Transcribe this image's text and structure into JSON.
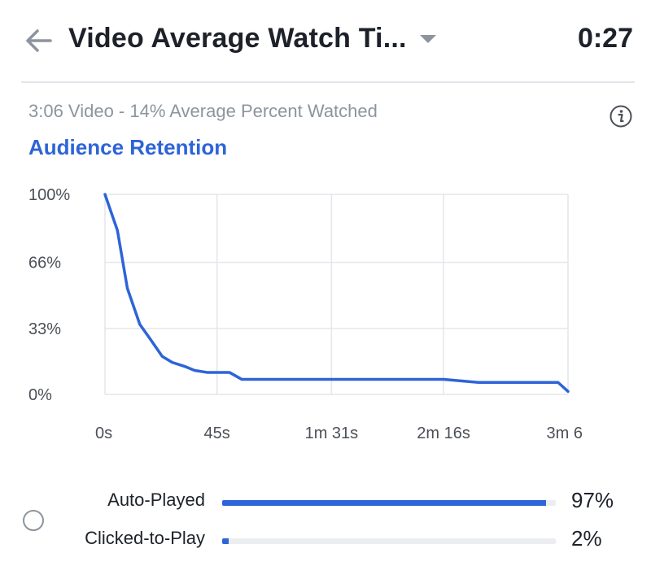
{
  "header": {
    "back_icon": "arrow-left-icon",
    "title": "Video Average Watch Ti...",
    "dropdown_icon": "caret-down-icon",
    "value": "0:27"
  },
  "summary": {
    "subtitle": "3:06 Video - 14% Average Percent Watched",
    "info_icon": "info-icon"
  },
  "chart_data": {
    "type": "line",
    "title": "Audience Retention",
    "x_tick_labels": [
      "0s",
      "45s",
      "1m 31s",
      "2m 16s",
      "3m 6"
    ],
    "x_tick_seconds": [
      0,
      45,
      91,
      136,
      186
    ],
    "y_tick_labels": [
      "100%",
      "66%",
      "33%",
      "0%"
    ],
    "y_tick_values": [
      100,
      66,
      33,
      0
    ],
    "xlim": [
      0,
      186
    ],
    "ylim": [
      0,
      100
    ],
    "grid": true,
    "line_color": "#2d64d8",
    "series": [
      {
        "x": [
          0,
          5,
          9,
          14,
          18,
          23,
          27,
          32,
          36,
          41,
          45,
          50,
          55,
          91,
          136,
          150,
          160,
          170,
          182,
          186
        ],
        "y": [
          100,
          82,
          53,
          35,
          28,
          19,
          16,
          14,
          12,
          11,
          11,
          11,
          7.5,
          7.5,
          7.5,
          6,
          6,
          6,
          6,
          1.5
        ]
      }
    ]
  },
  "legend": {
    "radio_icon": "radio-unselected-icon",
    "items": [
      {
        "label": "Auto-Played",
        "value": "97%",
        "fraction": 0.97
      },
      {
        "label": "Clicked-to-Play",
        "value": "2%",
        "fraction": 0.02
      }
    ],
    "bar_color": "#2d64d8",
    "track_color": "#ebedf0"
  }
}
